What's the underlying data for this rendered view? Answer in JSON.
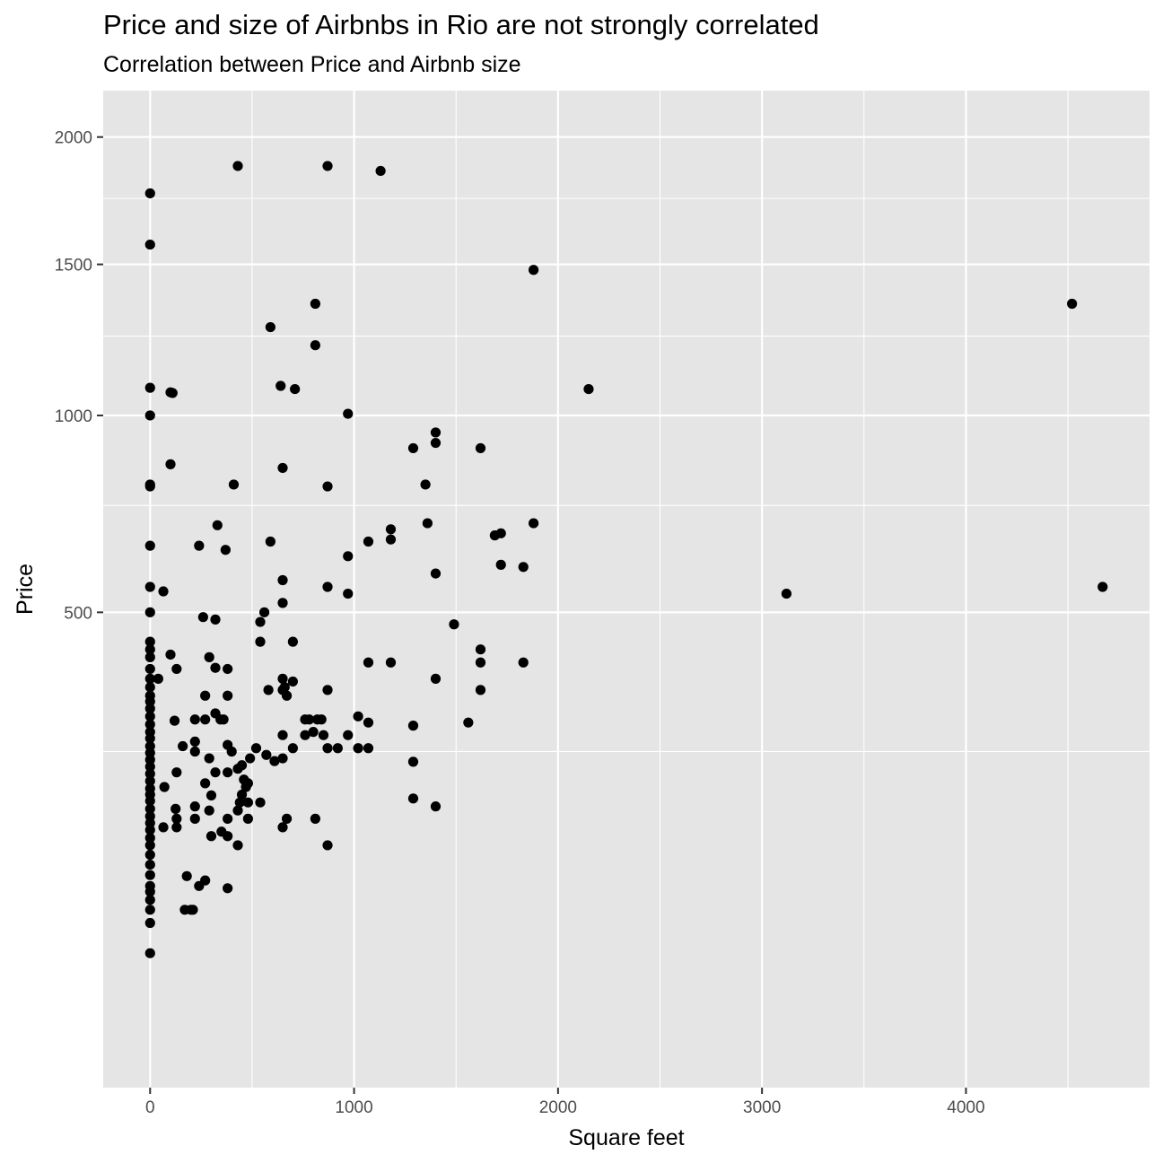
{
  "chart_data": {
    "type": "scatter",
    "title": "Price and size of Airbnbs in Rio are not strongly correlated",
    "subtitle": "Correlation between Price and Airbnb size",
    "xlabel": "Square feet",
    "ylabel": "Price",
    "y_scale": "sqrt",
    "xlim": [
      -230,
      4900
    ],
    "ylim": [
      0,
      2200
    ],
    "x_ticks": [
      0,
      1000,
      2000,
      3000,
      4000
    ],
    "x_tick_labels": [
      "0",
      "1000",
      "2000",
      "3000",
      "4000"
    ],
    "y_ticks": [
      500,
      1000,
      1500,
      2000
    ],
    "y_tick_labels": [
      "500",
      "1000",
      "1500",
      "2000"
    ],
    "grid": true,
    "legend": "none",
    "point_color": "#000000",
    "panel_color": "#e5e5e5",
    "grid_color": "#ffffff",
    "points": [
      [
        0,
        1770
      ],
      [
        0,
        1573
      ],
      [
        0,
        1084
      ],
      [
        0,
        1000
      ],
      [
        0,
        805
      ],
      [
        0,
        800
      ],
      [
        0,
        650
      ],
      [
        0,
        555
      ],
      [
        0,
        500
      ],
      [
        0,
        440
      ],
      [
        0,
        425
      ],
      [
        0,
        410
      ],
      [
        0,
        388
      ],
      [
        0,
        370
      ],
      [
        0,
        355
      ],
      [
        0,
        340
      ],
      [
        0,
        330
      ],
      [
        0,
        318
      ],
      [
        0,
        305
      ],
      [
        0,
        292
      ],
      [
        0,
        280
      ],
      [
        0,
        270
      ],
      [
        0,
        258
      ],
      [
        0,
        248
      ],
      [
        0,
        238
      ],
      [
        0,
        228
      ],
      [
        0,
        218
      ],
      [
        0,
        208
      ],
      [
        0,
        198
      ],
      [
        0,
        190
      ],
      [
        0,
        182
      ],
      [
        0,
        172
      ],
      [
        0,
        163
      ],
      [
        0,
        155
      ],
      [
        0,
        147
      ],
      [
        0,
        138
      ],
      [
        0,
        130
      ],
      [
        0,
        120
      ],
      [
        0,
        110
      ],
      [
        0,
        100
      ],
      [
        0,
        90
      ],
      [
        0,
        85
      ],
      [
        0,
        78
      ],
      [
        0,
        70
      ],
      [
        0,
        60
      ],
      [
        0,
        40
      ],
      [
        40,
        370
      ],
      [
        65,
        545
      ],
      [
        65,
        150
      ],
      [
        70,
        200
      ],
      [
        100,
        1070
      ],
      [
        100,
        860
      ],
      [
        100,
        415
      ],
      [
        110,
        1068
      ],
      [
        120,
        298
      ],
      [
        125,
        172
      ],
      [
        130,
        388
      ],
      [
        130,
        220
      ],
      [
        130,
        150
      ],
      [
        130,
        160
      ],
      [
        160,
        258
      ],
      [
        170,
        70
      ],
      [
        180,
        99
      ],
      [
        200,
        70
      ],
      [
        210,
        70
      ],
      [
        220,
        300
      ],
      [
        220,
        250
      ],
      [
        220,
        265
      ],
      [
        220,
        175
      ],
      [
        220,
        160
      ],
      [
        240,
        90
      ],
      [
        240,
        650
      ],
      [
        260,
        490
      ],
      [
        270,
        205
      ],
      [
        270,
        300
      ],
      [
        270,
        340
      ],
      [
        270,
        95
      ],
      [
        290,
        410
      ],
      [
        290,
        170
      ],
      [
        290,
        240
      ],
      [
        300,
        189
      ],
      [
        300,
        140
      ],
      [
        320,
        485
      ],
      [
        320,
        310
      ],
      [
        320,
        390
      ],
      [
        320,
        220
      ],
      [
        330,
        700
      ],
      [
        345,
        300
      ],
      [
        350,
        145
      ],
      [
        360,
        300
      ],
      [
        370,
        640
      ],
      [
        380,
        340
      ],
      [
        380,
        260
      ],
      [
        380,
        388
      ],
      [
        380,
        160
      ],
      [
        380,
        140
      ],
      [
        380,
        88
      ],
      [
        380,
        220
      ],
      [
        400,
        250
      ],
      [
        410,
        805
      ],
      [
        430,
        1880
      ],
      [
        430,
        130
      ],
      [
        430,
        225
      ],
      [
        430,
        170
      ],
      [
        440,
        180
      ],
      [
        450,
        230
      ],
      [
        450,
        190
      ],
      [
        460,
        210
      ],
      [
        470,
        200
      ],
      [
        480,
        180
      ],
      [
        480,
        160
      ],
      [
        480,
        205
      ],
      [
        490,
        240
      ],
      [
        520,
        255
      ],
      [
        540,
        480
      ],
      [
        540,
        180
      ],
      [
        540,
        440
      ],
      [
        560,
        500
      ],
      [
        570,
        245
      ],
      [
        580,
        350
      ],
      [
        590,
        1280
      ],
      [
        590,
        660
      ],
      [
        610,
        236
      ],
      [
        640,
        1090
      ],
      [
        650,
        850
      ],
      [
        650,
        570
      ],
      [
        650,
        520
      ],
      [
        650,
        370
      ],
      [
        650,
        275
      ],
      [
        650,
        150
      ],
      [
        650,
        240
      ],
      [
        650,
        350
      ],
      [
        660,
        355
      ],
      [
        670,
        340
      ],
      [
        670,
        160
      ],
      [
        700,
        440
      ],
      [
        700,
        365
      ],
      [
        700,
        255
      ],
      [
        710,
        1080
      ],
      [
        760,
        300
      ],
      [
        760,
        275
      ],
      [
        780,
        300
      ],
      [
        800,
        280
      ],
      [
        810,
        1360
      ],
      [
        810,
        1220
      ],
      [
        810,
        160
      ],
      [
        820,
        300
      ],
      [
        840,
        300
      ],
      [
        850,
        275
      ],
      [
        870,
        1880
      ],
      [
        870,
        800
      ],
      [
        870,
        555
      ],
      [
        870,
        350
      ],
      [
        870,
        255
      ],
      [
        870,
        130
      ],
      [
        920,
        255
      ],
      [
        970,
        1005
      ],
      [
        970,
        625
      ],
      [
        970,
        540
      ],
      [
        970,
        275
      ],
      [
        1020,
        305
      ],
      [
        1020,
        255
      ],
      [
        1070,
        660
      ],
      [
        1070,
        295
      ],
      [
        1070,
        400
      ],
      [
        1070,
        255
      ],
      [
        1130,
        1860
      ],
      [
        1180,
        690
      ],
      [
        1180,
        665
      ],
      [
        1180,
        400
      ],
      [
        1290,
        905
      ],
      [
        1290,
        290
      ],
      [
        1290,
        235
      ],
      [
        1290,
        185
      ],
      [
        1350,
        805
      ],
      [
        1360,
        705
      ],
      [
        1400,
        950
      ],
      [
        1400,
        920
      ],
      [
        1400,
        585
      ],
      [
        1400,
        370
      ],
      [
        1400,
        175
      ],
      [
        1490,
        475
      ],
      [
        1560,
        295
      ],
      [
        1620,
        905
      ],
      [
        1620,
        425
      ],
      [
        1620,
        400
      ],
      [
        1620,
        350
      ],
      [
        1690,
        675
      ],
      [
        1720,
        680
      ],
      [
        1720,
        605
      ],
      [
        1830,
        600
      ],
      [
        1830,
        400
      ],
      [
        1880,
        1480
      ],
      [
        1880,
        705
      ],
      [
        2150,
        1080
      ],
      [
        3120,
        540
      ],
      [
        4520,
        1360
      ],
      [
        4670,
        555
      ]
    ]
  }
}
